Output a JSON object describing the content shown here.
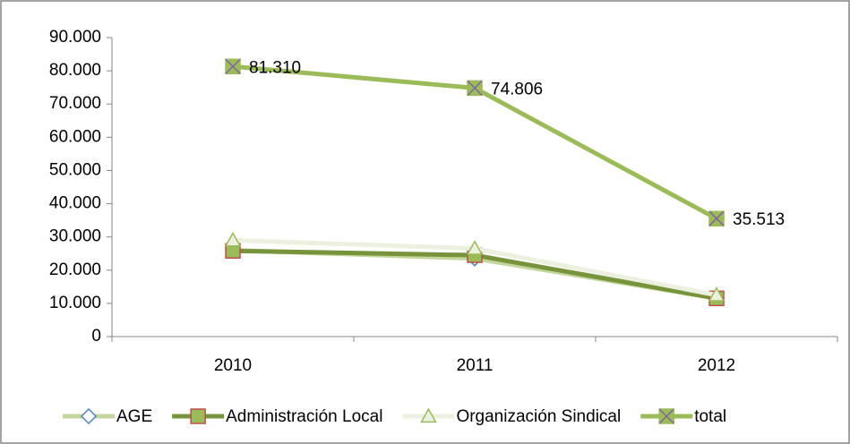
{
  "chart_data": {
    "type": "line",
    "categories": [
      "2010",
      "2011",
      "2012"
    ],
    "ylim": [
      0,
      90000
    ],
    "yticks": [
      0,
      {
        "value": 10000,
        "label": "10.000"
      },
      {
        "value": 20000,
        "label": "20.000"
      },
      {
        "value": 30000,
        "label": "30.000"
      },
      {
        "value": 40000,
        "label": "40.000"
      },
      {
        "value": 50000,
        "label": "50.000"
      },
      {
        "value": 60000,
        "label": "60.000"
      },
      {
        "value": 70000,
        "label": "70.000"
      },
      {
        "value": 80000,
        "label": "80.000"
      },
      {
        "value": 90000,
        "label": "90.000"
      }
    ],
    "grid": false,
    "legend": "bottom",
    "series": [
      {
        "name": "AGE",
        "color": "#c3d69b",
        "marker": "diamond",
        "marker_fill": "#ffffff",
        "marker_edge": "#4f81bd",
        "values": [
          26000,
          23500,
          11500
        ]
      },
      {
        "name": "Administración Local",
        "color": "#77933c",
        "marker": "square",
        "marker_fill": "#9bbb59",
        "marker_edge": "#c0504d",
        "values": [
          25800,
          24500,
          11500
        ]
      },
      {
        "name": "Organización Sindical",
        "color": "#ebf1de",
        "marker": "triangle",
        "marker_fill": "#ebf1de",
        "marker_edge": "#9bbb59",
        "values": [
          29000,
          26500,
          12500
        ]
      },
      {
        "name": "total",
        "color": "#9bbb59",
        "marker": "xsquare",
        "marker_fill": "#9bbb59",
        "marker_edge": "#8064a2",
        "values": [
          81310,
          74806,
          35513
        ],
        "value_labels": [
          "81.310",
          "74.806",
          "35.513"
        ]
      }
    ]
  }
}
